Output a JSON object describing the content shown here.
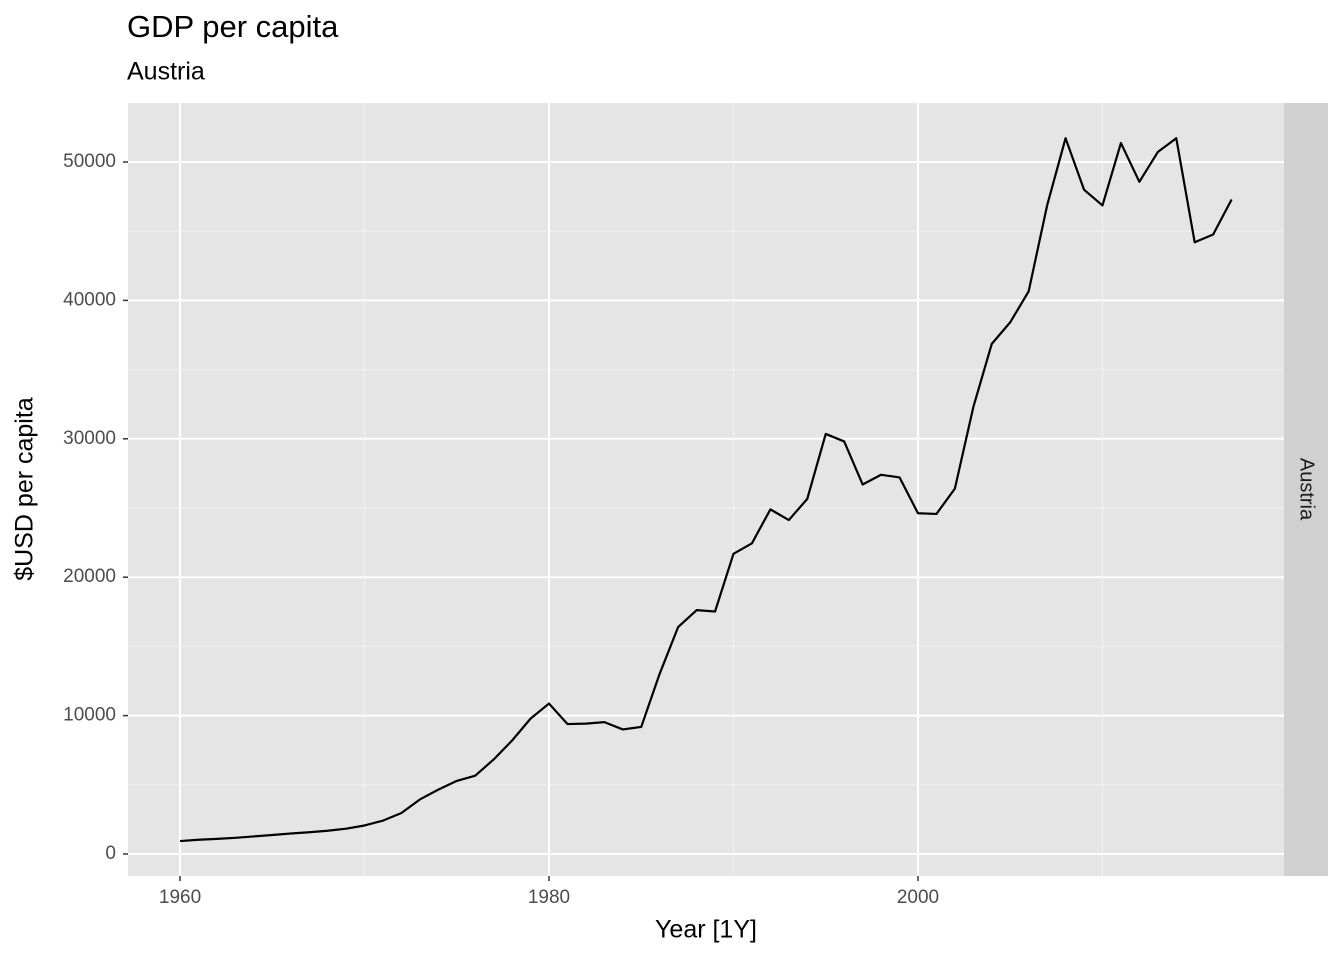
{
  "chart_data": {
    "type": "line",
    "title": "GDP per capita",
    "subtitle": "Austria",
    "x_label": "Year [1Y]",
    "y_label": "$USD per capita",
    "strip": "Austria",
    "x": [
      1960,
      1961,
      1962,
      1963,
      1964,
      1965,
      1966,
      1967,
      1968,
      1969,
      1970,
      1971,
      1972,
      1973,
      1974,
      1975,
      1976,
      1977,
      1978,
      1979,
      1980,
      1981,
      1982,
      1983,
      1984,
      1985,
      1986,
      1987,
      1988,
      1989,
      1990,
      1991,
      1992,
      1993,
      1994,
      1995,
      1996,
      1997,
      1998,
      1999,
      2000,
      2001,
      2002,
      2003,
      2004,
      2005,
      2006,
      2007,
      2008,
      2009,
      2010,
      2011,
      2012,
      2013,
      2014,
      2015,
      2016,
      2017
    ],
    "values": [
      935,
      1030,
      1090,
      1170,
      1270,
      1370,
      1480,
      1570,
      1680,
      1830,
      2060,
      2410,
      2960,
      3940,
      4650,
      5280,
      5660,
      6830,
      8200,
      9780,
      10870,
      9390,
      9420,
      9530,
      9000,
      9180,
      13030,
      16400,
      17620,
      17520,
      21690,
      22450,
      24900,
      24130,
      25660,
      30350,
      29810,
      26700,
      27400,
      27210,
      24620,
      24570,
      26400,
      32290,
      36860,
      38420,
      40660,
      46860,
      51720,
      48000,
      46860,
      51370,
      48570,
      50720,
      51720,
      44200,
      44760,
      47290
    ],
    "color": "#000000",
    "xlim": [
      1957.18,
      2019.84
    ],
    "xticks": [
      1960,
      1980,
      2000
    ],
    "xminor": [
      1970,
      1990,
      2010
    ],
    "ylim": [
      -1590,
      54263
    ],
    "yticks": [
      0,
      10000,
      20000,
      30000,
      40000,
      50000
    ],
    "yminor": [
      5000,
      15000,
      25000,
      35000,
      45000
    ],
    "grid": true
  }
}
